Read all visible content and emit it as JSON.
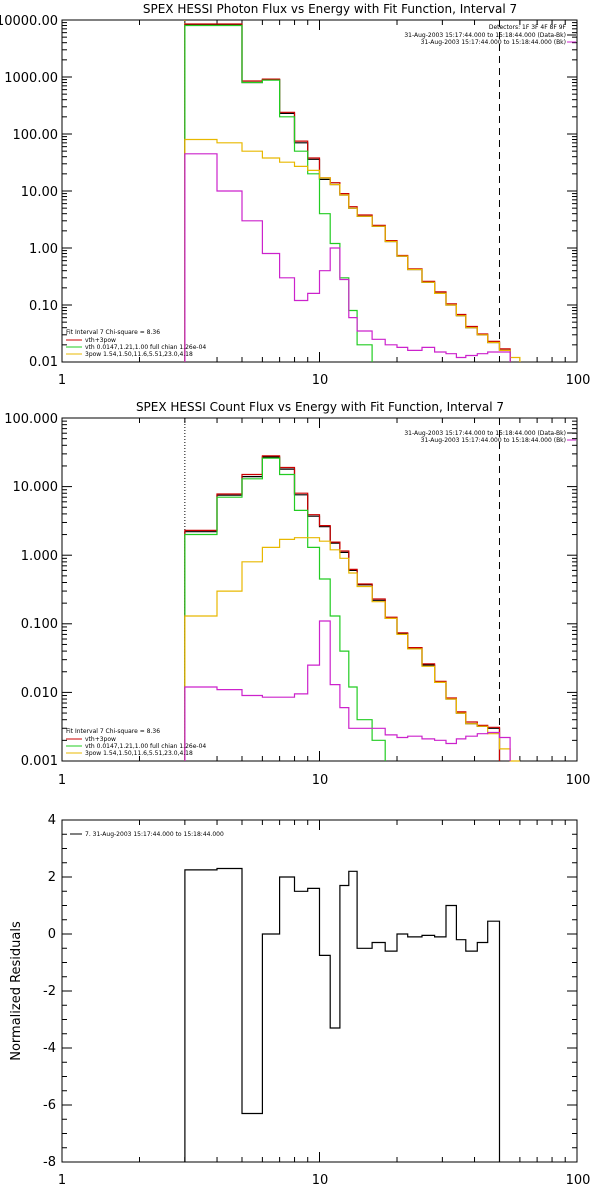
{
  "chart_data": [
    {
      "type": "line",
      "title": "SPEX HESSI Photon Flux vs Energy with Fit Function, Interval 7",
      "xscale": "log",
      "yscale": "log",
      "xlim": [
        1,
        100
      ],
      "ylim": [
        0.01,
        10000
      ],
      "x_ticklabels": [
        "1",
        "10",
        "100"
      ],
      "y_ticklabels": [
        "0.01",
        "0.10",
        "1.00",
        "10.00",
        "100.00",
        "1000.00",
        "10000.00"
      ],
      "vlines": [
        {
          "x": 3,
          "style": "dotted",
          "color": "#e8b000"
        },
        {
          "x": 50,
          "style": "dashed",
          "color": "#000000"
        }
      ],
      "header_right": [
        "Detectors: 1F 3F 4F 8F 9F",
        "31-Aug-2003 15:17:44.000 to 15:18:44.000 (Data-Bk)",
        "31-Aug-2003 15:17:44.000 to 15:18:44.000 (Bk)"
      ],
      "legend_left": [
        "Fit Interval 7   Chi-square = 8.36",
        "vth+3pow",
        "vth 0.0147,1.21,1.00  full chian 1.26e-04",
        "3pow 1.54,1.50,11.6,5.51,23.0,4.18"
      ],
      "edges": [
        3,
        4,
        5,
        6,
        7,
        8,
        9,
        10,
        11,
        12,
        13,
        14,
        16,
        18,
        20,
        22,
        25,
        28,
        31,
        34,
        37,
        41,
        45,
        50,
        55,
        60
      ],
      "series": [
        {
          "name": "Data-Bk",
          "color": "#000000",
          "values": [
            8200,
            8200,
            800,
            900,
            230,
            70,
            36,
            16,
            13,
            8.5,
            5,
            3.6,
            2.4,
            1.3,
            0.72,
            0.42,
            0.25,
            0.16,
            0.1,
            0.065,
            0.04,
            0.03,
            0.022,
            0.016,
            null
          ]
        },
        {
          "name": "vth+3pow",
          "color": "#cc0000",
          "values": [
            8500,
            8500,
            850,
            920,
            240,
            75,
            38,
            17,
            14,
            9,
            5.3,
            3.8,
            2.5,
            1.35,
            0.74,
            0.43,
            0.26,
            0.17,
            0.105,
            0.068,
            0.042,
            0.031,
            0.023,
            0.017,
            null
          ]
        },
        {
          "name": "vth",
          "color": "#22cc22",
          "values": [
            8000,
            8000,
            800,
            880,
            200,
            50,
            20,
            4,
            1.2,
            0.3,
            0.08,
            0.02,
            null,
            null,
            null,
            null,
            null,
            null,
            null,
            null,
            null,
            null,
            null,
            null,
            null
          ]
        },
        {
          "name": "3pow",
          "color": "#e8b800",
          "values": [
            80,
            70,
            50,
            38,
            32,
            27,
            23,
            17,
            13,
            8.5,
            5,
            3.6,
            2.4,
            1.3,
            0.72,
            0.42,
            0.25,
            0.16,
            0.1,
            0.065,
            0.04,
            0.03,
            0.022,
            0.016,
            0.012
          ]
        },
        {
          "name": "Bk",
          "color": "#cc22cc",
          "values": [
            45,
            10,
            3,
            0.8,
            0.3,
            0.12,
            0.16,
            0.4,
            1.0,
            0.28,
            0.06,
            0.035,
            0.025,
            0.02,
            0.018,
            0.016,
            0.018,
            0.015,
            0.014,
            0.012,
            0.013,
            0.014,
            0.015,
            0.015,
            null
          ]
        }
      ]
    },
    {
      "type": "line",
      "title": "SPEX HESSI Count Flux vs Energy with Fit Function, Interval 7",
      "xscale": "log",
      "yscale": "log",
      "xlim": [
        1,
        100
      ],
      "ylim": [
        0.001,
        100
      ],
      "x_ticklabels": [
        "1",
        "10",
        "100"
      ],
      "y_ticklabels": [
        "0.001",
        "0.010",
        "0.100",
        "1.000",
        "10.000",
        "100.000"
      ],
      "vlines": [
        {
          "x": 3,
          "style": "dotted",
          "color": "#000000"
        },
        {
          "x": 50,
          "style": "dashed",
          "color": "#000000"
        }
      ],
      "header_right": [
        "31-Aug-2003 15:17:44.000 to 15:18:44.000 (Data-Bk)",
        "31-Aug-2003 15:17:44.000 to 15:18:44.000 (Bk)"
      ],
      "legend_left": [
        "Fit Interval 7   Chi-square = 8.36",
        "vth+3pow",
        "vth 0.0147,1.21,1.00  full chian 1.26e-04",
        "3pow 1.54,1.50,11.6,5.51,23.0,4.18"
      ],
      "edges": [
        3,
        4,
        5,
        6,
        7,
        8,
        9,
        10,
        11,
        12,
        13,
        14,
        16,
        18,
        20,
        22,
        25,
        28,
        31,
        34,
        37,
        41,
        45,
        50,
        55,
        60
      ],
      "series": [
        {
          "name": "Data-Bk",
          "color": "#000000",
          "values": [
            2.2,
            7.5,
            14,
            27,
            18,
            7.6,
            3.7,
            2.6,
            1.5,
            1.1,
            0.6,
            0.37,
            0.22,
            0.12,
            0.072,
            0.044,
            0.025,
            0.014,
            0.008,
            0.005,
            0.0035,
            0.0032,
            0.003,
            null,
            null
          ]
        },
        {
          "name": "vth+3pow",
          "color": "#cc0000",
          "values": [
            2.3,
            7.8,
            15,
            28,
            19,
            8,
            3.9,
            2.7,
            1.55,
            1.15,
            0.62,
            0.38,
            0.23,
            0.125,
            0.074,
            0.045,
            0.026,
            0.0145,
            0.0083,
            0.0052,
            0.0037,
            0.0033,
            0.0031,
            null,
            null
          ]
        },
        {
          "name": "vth",
          "color": "#22cc22",
          "values": [
            2.0,
            7,
            13,
            26,
            15,
            4.5,
            1.3,
            0.45,
            0.13,
            0.04,
            0.012,
            0.004,
            0.002,
            null,
            null,
            null,
            null,
            null,
            null,
            null,
            null,
            null,
            null,
            null,
            null
          ]
        },
        {
          "name": "3pow",
          "color": "#e8b800",
          "values": [
            0.13,
            0.3,
            0.8,
            1.3,
            1.7,
            1.8,
            1.8,
            1.6,
            1.2,
            0.9,
            0.55,
            0.35,
            0.21,
            0.12,
            0.07,
            0.043,
            0.024,
            0.014,
            0.008,
            0.005,
            0.0035,
            0.0032,
            0.0025,
            0.0015,
            0.001
          ]
        },
        {
          "name": "Bk",
          "color": "#cc22cc",
          "values": [
            0.012,
            0.011,
            0.009,
            0.0085,
            0.0085,
            0.0095,
            0.025,
            0.11,
            0.013,
            0.006,
            0.003,
            0.003,
            0.003,
            0.0024,
            0.0022,
            0.0023,
            0.0021,
            0.002,
            0.0018,
            0.0021,
            0.0023,
            0.0025,
            0.0026,
            0.0022,
            null
          ]
        }
      ]
    },
    {
      "type": "line",
      "title": "",
      "xscale": "log",
      "yscale": "linear",
      "xlim": [
        1,
        100
      ],
      "ylim": [
        -8,
        4
      ],
      "ylabel": "Normalized Residuals",
      "x_ticklabels": [
        "1",
        "10",
        "100"
      ],
      "y_ticklabels": [
        "-8",
        "-6",
        "-4",
        "-2",
        "0",
        "2",
        "4"
      ],
      "legend_left": [
        "7. 31-Aug-2003 15:17:44.000 to 15:18:44.000"
      ],
      "edges": [
        3,
        4,
        5,
        6,
        7,
        8,
        9,
        10,
        11,
        12,
        13,
        14,
        16,
        18,
        20,
        22,
        25,
        28,
        31,
        34,
        37,
        41,
        45,
        50
      ],
      "series": [
        {
          "name": "7. 31-Aug-2003 15:17:44.000 to 15:18:44.000",
          "color": "#000000",
          "values": [
            2.25,
            2.3,
            -6.3,
            0.0,
            2.0,
            1.5,
            1.6,
            -0.75,
            -3.3,
            1.7,
            2.2,
            -0.5,
            -0.3,
            -0.6,
            0.0,
            -0.1,
            -0.05,
            -0.1,
            1.0,
            -0.2,
            -0.6,
            -0.3,
            0.45
          ]
        }
      ]
    }
  ]
}
